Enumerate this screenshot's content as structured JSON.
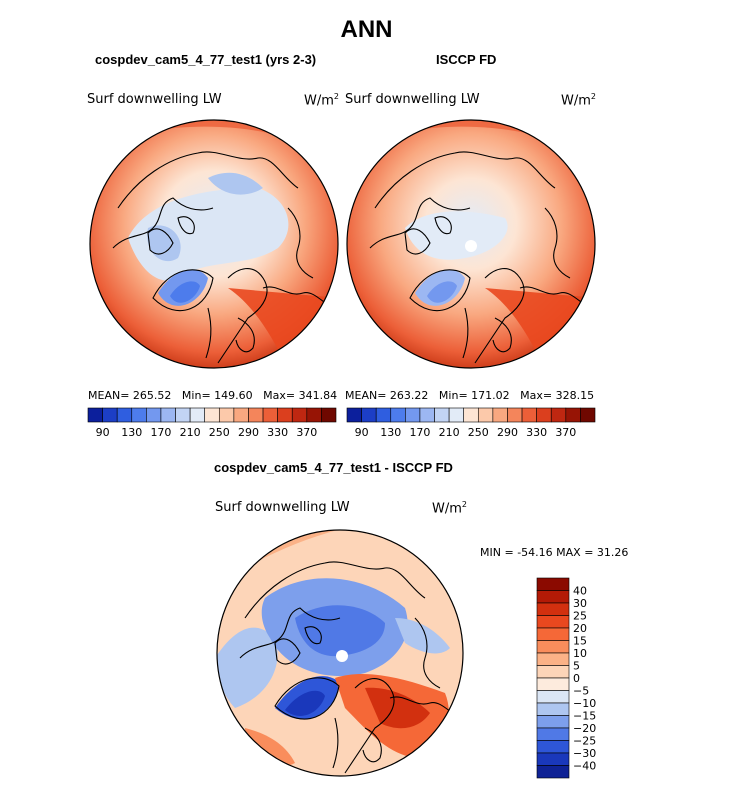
{
  "figure": {
    "title": "ANN",
    "variable": "Surf downwelling LW",
    "units_base": "W/m",
    "units_exp": "2"
  },
  "panels": {
    "model": {
      "title": "cospdev_cam5_4_77_test1 (yrs 2-3)",
      "mean": "265.52",
      "min": "149.60",
      "max": "341.84"
    },
    "obs": {
      "title": "ISCCP FD",
      "mean": "263.22",
      "min": "171.02",
      "max": "328.15"
    },
    "diff": {
      "title": "cospdev_cam5_4_77_test1 - ISCCP FD",
      "min": "-54.16",
      "max": "31.26"
    }
  },
  "labels": {
    "mean_prefix": "MEAN=",
    "min_prefix": "Min=",
    "max_prefix": "Max=",
    "diff_minmax_min": "MIN = ",
    "diff_minmax_max": "MAX = "
  },
  "chart_data": [
    {
      "type": "heatmap",
      "projection": "north-polar-stereographic",
      "title": "cospdev_cam5_4_77_test1 (yrs 2-3)",
      "colorbar": {
        "orientation": "horizontal",
        "tick_labels": [
          "90",
          "130",
          "170",
          "210",
          "250",
          "290",
          "330",
          "370"
        ],
        "colors": [
          "#0c1f9c",
          "#1c3ec6",
          "#2f5ee0",
          "#4d7cec",
          "#7398ef",
          "#9cb7f2",
          "#c2d4f4",
          "#e2ebf7",
          "#fde5d4",
          "#fcc9aa",
          "#f9a880",
          "#f4855b",
          "#ec5f38",
          "#db3f1e",
          "#bf2711",
          "#971405",
          "#6f0800"
        ]
      }
    },
    {
      "type": "heatmap",
      "projection": "north-polar-stereographic",
      "title": "ISCCP FD",
      "colorbar": {
        "orientation": "horizontal",
        "tick_labels": [
          "90",
          "130",
          "170",
          "210",
          "250",
          "290",
          "330",
          "370"
        ],
        "colors": [
          "#0c1f9c",
          "#1c3ec6",
          "#2f5ee0",
          "#4d7cec",
          "#7398ef",
          "#9cb7f2",
          "#c2d4f4",
          "#e2ebf7",
          "#fde5d4",
          "#fcc9aa",
          "#f9a880",
          "#f4855b",
          "#ec5f38",
          "#db3f1e",
          "#bf2711",
          "#971405",
          "#6f0800"
        ]
      }
    },
    {
      "type": "heatmap",
      "projection": "north-polar-stereographic",
      "title": "cospdev_cam5_4_77_test1 - ISCCP FD",
      "colorbar": {
        "orientation": "vertical",
        "tick_labels": [
          "40",
          "30",
          "25",
          "20",
          "15",
          "10",
          "5",
          "0",
          "−5",
          "−10",
          "−15",
          "−20",
          "−25",
          "−30",
          "−40"
        ],
        "colors": [
          "#8b0a00",
          "#b31a06",
          "#d2300f",
          "#e9481f",
          "#f56837",
          "#f98d5c",
          "#fbb287",
          "#fdd5b8",
          "#fdebdd",
          "#dbe6f5",
          "#aec6f0",
          "#7d9fec",
          "#5079e6",
          "#2e56d8",
          "#1a38bb",
          "#0f2295"
        ]
      }
    }
  ]
}
